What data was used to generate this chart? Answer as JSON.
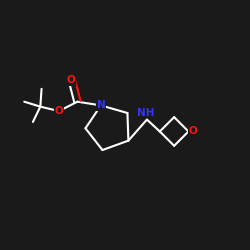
{
  "background_color": "#1a1a1a",
  "bond_color": "#ffffff",
  "N_color": "#3333ff",
  "O_color": "#ff1111",
  "bond_width": 1.5,
  "figsize": [
    2.5,
    2.5
  ],
  "dpi": 100,
  "xlim": [
    0.0,
    1.0
  ],
  "ylim": [
    0.15,
    0.85
  ]
}
